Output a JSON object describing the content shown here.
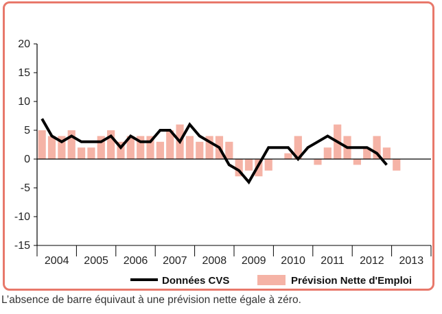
{
  "chart_data": {
    "type": "bar+line",
    "title": "",
    "xlabel": "",
    "ylabel": "",
    "ylim": [
      -15,
      20
    ],
    "yticks": [
      20,
      15,
      10,
      5,
      0,
      -5,
      -10,
      -15
    ],
    "years": [
      "2004",
      "2005",
      "2006",
      "2007",
      "2008",
      "2009",
      "2010",
      "2011",
      "2012",
      "2013"
    ],
    "quarters_per_year": 4,
    "bar_series": {
      "name": "Prévision Nette d'Emploi",
      "color": "#f5b3a6",
      "values": [
        5,
        4,
        4,
        5,
        2,
        2,
        4,
        5,
        3,
        4,
        4,
        4,
        3,
        5,
        6,
        4,
        3,
        4,
        4,
        3,
        -3,
        -2,
        -3,
        -2,
        0,
        1,
        4,
        0,
        -1,
        2,
        6,
        4,
        -1,
        2,
        4,
        2,
        -2
      ]
    },
    "line_series": {
      "name": "Données CVS",
      "color": "#000000",
      "values": [
        7,
        4,
        3,
        4,
        3,
        3,
        3,
        4,
        2,
        4,
        3,
        3,
        5,
        5,
        3,
        6,
        4,
        3,
        2,
        -1,
        -2,
        -4,
        -1,
        2,
        2,
        2,
        0,
        2,
        3,
        4,
        3,
        2,
        2,
        2,
        1,
        -1
      ]
    },
    "legend_position": "bottom-right",
    "grid": false
  },
  "footnote": "L’absence de barre équivaut à une prévision nette égale à zéro."
}
